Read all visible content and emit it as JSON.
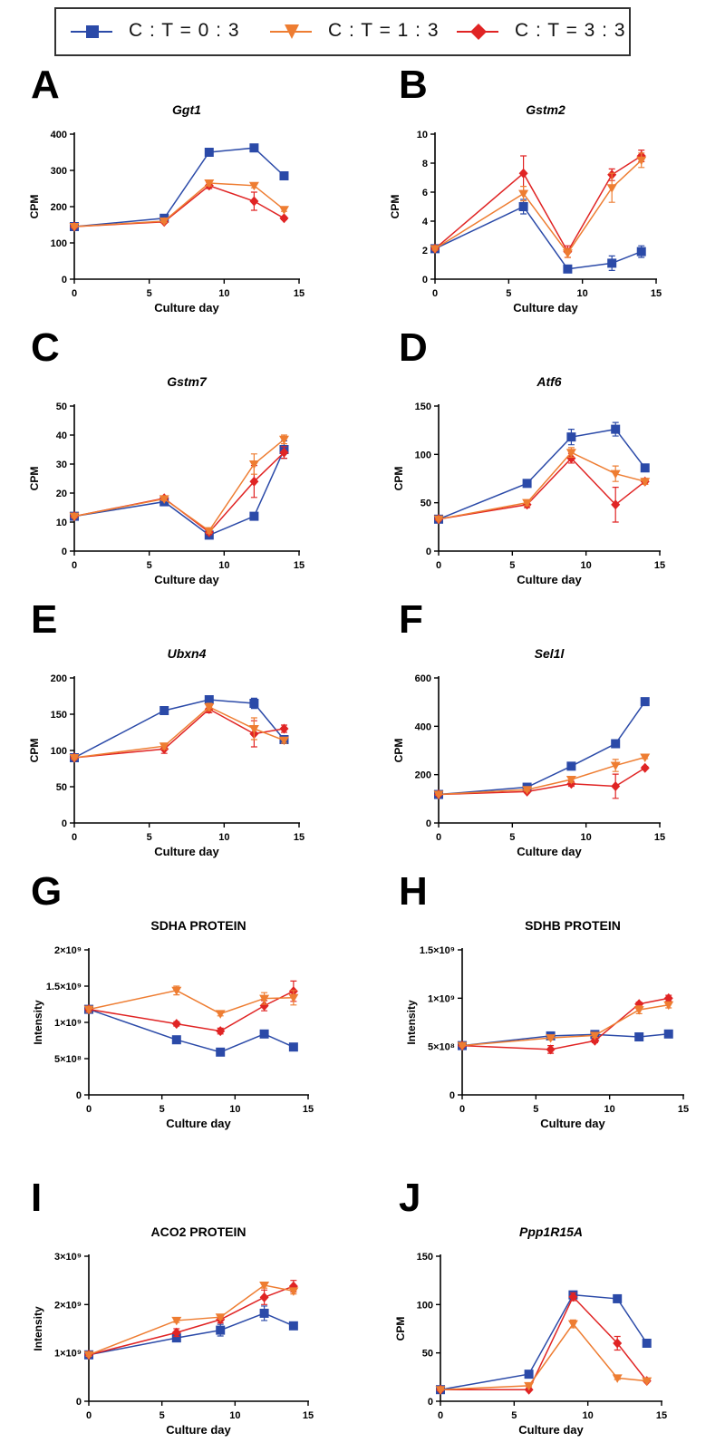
{
  "legend": [
    {
      "label": "C : T = 0 : 3",
      "color": "#2b4aa8",
      "marker": "square"
    },
    {
      "label": "C : T = 1 : 3",
      "color": "#ee7d32",
      "marker": "triangle-down"
    },
    {
      "label": "C : T = 3 : 3",
      "color": "#e02424",
      "marker": "diamond"
    }
  ],
  "chart_data": [
    {
      "panel": "A",
      "type": "line",
      "title": "Ggt1",
      "title_style": "italic",
      "xlabel": "Culture day",
      "ylabel": "CPM",
      "xlim": [
        0,
        15
      ],
      "ylim": [
        0,
        400
      ],
      "xticks": [
        "0",
        "5",
        "10",
        "15"
      ],
      "yticks": [
        "0",
        "100",
        "200",
        "300",
        "400"
      ],
      "x": [
        0,
        6,
        9,
        12,
        14
      ],
      "series": [
        {
          "name": "C : T = 0 : 3",
          "values": [
            145,
            168,
            350,
            362,
            285
          ],
          "errors": [
            3,
            5,
            10,
            8,
            10
          ]
        },
        {
          "name": "C : T = 1 : 3",
          "values": [
            145,
            160,
            265,
            258,
            192
          ],
          "errors": [
            3,
            4,
            8,
            6,
            5
          ]
        },
        {
          "name": "C : T = 3 : 3",
          "values": [
            145,
            158,
            258,
            215,
            168
          ],
          "errors": [
            3,
            4,
            8,
            25,
            4
          ]
        }
      ]
    },
    {
      "panel": "B",
      "type": "line",
      "title": "Gstm2",
      "title_style": "italic",
      "xlabel": "Culture day",
      "ylabel": "CPM",
      "xlim": [
        0,
        15
      ],
      "ylim": [
        0,
        10
      ],
      "xticks": [
        "0",
        "5",
        "10",
        "15"
      ],
      "yticks": [
        "0",
        "2",
        "4",
        "6",
        "8",
        "10"
      ],
      "x": [
        0,
        6,
        9,
        12,
        14
      ],
      "series": [
        {
          "name": "C : T = 0 : 3",
          "values": [
            2.1,
            5.0,
            0.7,
            1.1,
            1.9
          ],
          "errors": [
            0.1,
            0.5,
            0.15,
            0.5,
            0.4
          ]
        },
        {
          "name": "C : T = 1 : 3",
          "values": [
            2.1,
            5.9,
            1.8,
            6.3,
            8.2
          ],
          "errors": [
            0.1,
            0.5,
            0.3,
            1.0,
            0.5
          ]
        },
        {
          "name": "C : T = 3 : 3",
          "values": [
            2.1,
            7.3,
            1.9,
            7.2,
            8.5
          ],
          "errors": [
            0.1,
            1.2,
            0.4,
            0.4,
            0.4
          ]
        }
      ]
    },
    {
      "panel": "C",
      "type": "line",
      "title": "Gstm7",
      "title_style": "italic",
      "xlabel": "Culture day",
      "ylabel": "CPM",
      "xlim": [
        0,
        15
      ],
      "ylim": [
        0,
        50
      ],
      "xticks": [
        "0",
        "5",
        "10",
        "15"
      ],
      "yticks": [
        "0",
        "10",
        "20",
        "30",
        "40",
        "50"
      ],
      "x": [
        0,
        6,
        9,
        12,
        14
      ],
      "series": [
        {
          "name": "C : T = 0 : 3",
          "values": [
            12,
            17,
            5.5,
            12,
            35
          ],
          "errors": [
            0.5,
            0.8,
            0.5,
            1.2,
            3
          ]
        },
        {
          "name": "C : T = 1 : 3",
          "values": [
            12,
            18,
            7,
            30,
            38.5
          ],
          "errors": [
            0.5,
            0.6,
            0.8,
            3.5,
            1.5
          ]
        },
        {
          "name": "C : T = 3 : 3",
          "values": [
            12,
            18.2,
            6.5,
            24,
            34
          ],
          "errors": [
            0.5,
            0.5,
            0.8,
            5.5,
            2
          ]
        }
      ]
    },
    {
      "panel": "D",
      "type": "line",
      "title": "Atf6",
      "title_style": "italic",
      "xlabel": "Culture day",
      "ylabel": "CPM",
      "xlim": [
        0,
        15
      ],
      "ylim": [
        0,
        150
      ],
      "xticks": [
        "0",
        "5",
        "10",
        "15"
      ],
      "yticks": [
        "0",
        "50",
        "100",
        "150"
      ],
      "x": [
        0,
        6,
        9,
        12,
        14
      ],
      "series": [
        {
          "name": "C : T = 0 : 3",
          "values": [
            33,
            70,
            118,
            126,
            86
          ],
          "errors": [
            1,
            2,
            8,
            7,
            2
          ]
        },
        {
          "name": "C : T = 1 : 3",
          "values": [
            33,
            50,
            102,
            80,
            72
          ],
          "errors": [
            1,
            3,
            5,
            8,
            3
          ]
        },
        {
          "name": "C : T = 3 : 3",
          "values": [
            33,
            48,
            96,
            48,
            72
          ],
          "errors": [
            1,
            3,
            5,
            18,
            3
          ]
        }
      ]
    },
    {
      "panel": "E",
      "type": "line",
      "title": "Ubxn4",
      "title_style": "italic",
      "xlabel": "Culture day",
      "ylabel": "CPM",
      "xlim": [
        0,
        15
      ],
      "ylim": [
        0,
        200
      ],
      "xticks": [
        "0",
        "5",
        "10",
        "15"
      ],
      "yticks": [
        "0",
        "50",
        "100",
        "150",
        "200"
      ],
      "x": [
        0,
        6,
        9,
        12,
        14
      ],
      "series": [
        {
          "name": "C : T = 0 : 3",
          "values": [
            90,
            155,
            170,
            165,
            115
          ],
          "errors": [
            2,
            3,
            4,
            7,
            4
          ]
        },
        {
          "name": "C : T = 1 : 3",
          "values": [
            90,
            106,
            160,
            130,
            114
          ],
          "errors": [
            2,
            4,
            5,
            15,
            4
          ]
        },
        {
          "name": "C : T = 3 : 3",
          "values": [
            90,
            102,
            157,
            123,
            130
          ],
          "errors": [
            2,
            6,
            5,
            18,
            5
          ]
        }
      ]
    },
    {
      "panel": "F",
      "type": "line",
      "title": "Sel1l",
      "title_style": "italic",
      "xlabel": "Culture day",
      "ylabel": "CPM",
      "xlim": [
        0,
        15
      ],
      "ylim": [
        0,
        600
      ],
      "xticks": [
        "0",
        "5",
        "10",
        "15"
      ],
      "yticks": [
        "0",
        "200",
        "400",
        "600"
      ],
      "x": [
        0,
        6,
        9,
        12,
        14
      ],
      "series": [
        {
          "name": "C : T = 0 : 3",
          "values": [
            118,
            148,
            235,
            328,
            502
          ],
          "errors": [
            3,
            6,
            15,
            8,
            6
          ]
        },
        {
          "name": "C : T = 1 : 3",
          "values": [
            118,
            138,
            180,
            238,
            272
          ],
          "errors": [
            3,
            6,
            12,
            25,
            6
          ]
        },
        {
          "name": "C : T = 3 : 3",
          "values": [
            118,
            130,
            162,
            152,
            228
          ],
          "errors": [
            3,
            5,
            10,
            50,
            6
          ]
        }
      ]
    },
    {
      "panel": "G",
      "type": "line",
      "title": "SDHA PROTEIN",
      "title_style": "normal",
      "xlabel": "Culture day",
      "ylabel": "Intensity",
      "xlim": [
        0,
        15
      ],
      "ylim": [
        0,
        2000000000
      ],
      "xticks": [
        "0",
        "5",
        "10",
        "15"
      ],
      "yticks": [
        "0",
        "5×10⁸",
        "1×10⁹",
        "1.5×10⁹",
        "2×10⁹"
      ],
      "x": [
        0,
        6,
        9,
        12,
        14
      ],
      "series": [
        {
          "name": "C : T = 0 : 3",
          "values": [
            1180000000,
            760000000,
            590000000,
            840000000,
            660000000
          ],
          "errors": [
            40000000,
            30000000,
            40000000,
            40000000,
            20000000
          ]
        },
        {
          "name": "C : T = 1 : 3",
          "values": [
            1180000000,
            1440000000,
            1120000000,
            1330000000,
            1340000000
          ],
          "errors": [
            40000000,
            60000000,
            30000000,
            80000000,
            100000000
          ]
        },
        {
          "name": "C : T = 3 : 3",
          "values": [
            1180000000,
            980000000,
            880000000,
            1230000000,
            1430000000
          ],
          "errors": [
            40000000,
            30000000,
            40000000,
            70000000,
            140000000
          ]
        }
      ]
    },
    {
      "panel": "H",
      "type": "line",
      "title": "SDHB PROTEIN",
      "title_style": "normal",
      "xlabel": "Culture day",
      "ylabel": "Intensity",
      "xlim": [
        0,
        15
      ],
      "ylim": [
        0,
        1500000000
      ],
      "xticks": [
        "0",
        "5",
        "10",
        "15"
      ],
      "yticks": [
        "0",
        "5×10⁸",
        "1×10⁹",
        "1.5×10⁹"
      ],
      "x": [
        0,
        6,
        9,
        12,
        14
      ],
      "series": [
        {
          "name": "C : T = 0 : 3",
          "values": [
            510000000,
            610000000,
            625000000,
            600000000,
            630000000
          ],
          "errors": [
            10000000,
            20000000,
            20000000,
            15000000,
            15000000
          ]
        },
        {
          "name": "C : T = 1 : 3",
          "values": [
            510000000,
            590000000,
            615000000,
            880000000,
            930000000
          ],
          "errors": [
            10000000,
            20000000,
            20000000,
            40000000,
            30000000
          ]
        },
        {
          "name": "C : T = 3 : 3",
          "values": [
            510000000,
            470000000,
            560000000,
            940000000,
            1000000000
          ],
          "errors": [
            10000000,
            40000000,
            20000000,
            20000000,
            30000000
          ]
        }
      ]
    },
    {
      "panel": "I",
      "type": "line",
      "title": "ACO2 PROTEIN",
      "title_style": "normal",
      "xlabel": "Culture day",
      "ylabel": "Intensity",
      "xlim": [
        0,
        15
      ],
      "ylim": [
        0,
        3000000000
      ],
      "xticks": [
        "0",
        "5",
        "10",
        "15"
      ],
      "yticks": [
        "0",
        "1×10⁹",
        "2×10⁹",
        "3×10⁹"
      ],
      "x": [
        0,
        6,
        9,
        12,
        14
      ],
      "series": [
        {
          "name": "C : T = 0 : 3",
          "values": [
            960000000,
            1310000000,
            1470000000,
            1820000000,
            1560000000
          ],
          "errors": [
            30000000,
            50000000,
            120000000,
            150000000,
            30000000
          ]
        },
        {
          "name": "C : T = 1 : 3",
          "values": [
            960000000,
            1670000000,
            1740000000,
            2400000000,
            2280000000
          ],
          "errors": [
            30000000,
            40000000,
            40000000,
            60000000,
            60000000
          ]
        },
        {
          "name": "C : T = 3 : 3",
          "values": [
            960000000,
            1420000000,
            1690000000,
            2150000000,
            2380000000
          ],
          "errors": [
            30000000,
            80000000,
            70000000,
            150000000,
            120000000
          ]
        }
      ]
    },
    {
      "panel": "J",
      "type": "line",
      "title": "Ppp1R15A",
      "title_style": "italic",
      "xlabel": "Culture day",
      "ylabel": "CPM",
      "xlim": [
        0,
        15
      ],
      "ylim": [
        0,
        150
      ],
      "xticks": [
        "0",
        "5",
        "10",
        "15"
      ],
      "yticks": [
        "0",
        "50",
        "100",
        "150"
      ],
      "x": [
        0,
        6,
        9,
        12,
        14
      ],
      "series": [
        {
          "name": "C : T = 0 : 3",
          "values": [
            12,
            28,
            110,
            106,
            60
          ],
          "errors": [
            1,
            1.5,
            3,
            2,
            4
          ]
        },
        {
          "name": "C : T = 1 : 3",
          "values": [
            12,
            16,
            80,
            24,
            21
          ],
          "errors": [
            1,
            1,
            4,
            1.5,
            1
          ]
        },
        {
          "name": "C : T = 3 : 3",
          "values": [
            12,
            12,
            108,
            60,
            21
          ],
          "errors": [
            1,
            1,
            4,
            7,
            1
          ]
        }
      ]
    }
  ]
}
